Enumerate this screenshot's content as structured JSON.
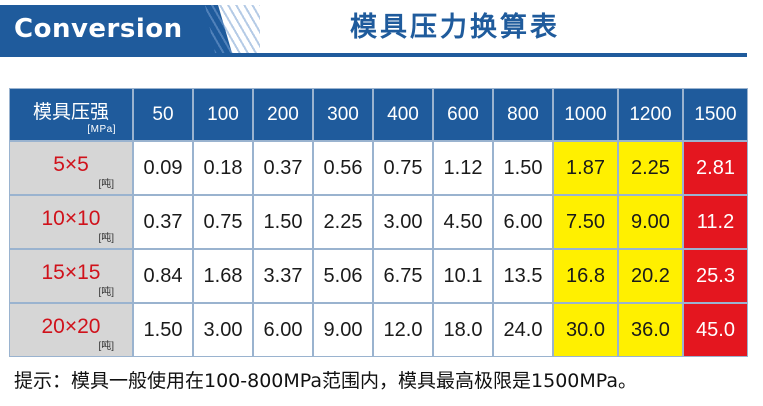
{
  "header": {
    "en_title": "Conversion",
    "cn_title": "模具压力换算表"
  },
  "table": {
    "corner_label": "模具压强",
    "corner_unit": "[MPa]",
    "row_unit": "[吨]",
    "columns": [
      "50",
      "100",
      "200",
      "300",
      "400",
      "600",
      "800",
      "1000",
      "1200",
      "1500"
    ],
    "rows": [
      {
        "size": "5×5",
        "values": [
          "0.09",
          "0.18",
          "0.37",
          "0.56",
          "0.75",
          "1.12",
          "1.50",
          "1.87",
          "2.25",
          "2.81"
        ]
      },
      {
        "size": "10×10",
        "values": [
          "0.37",
          "0.75",
          "1.50",
          "2.25",
          "3.00",
          "4.50",
          "6.00",
          "7.50",
          "9.00",
          "11.2"
        ]
      },
      {
        "size": "15×15",
        "values": [
          "0.84",
          "1.68",
          "3.37",
          "5.06",
          "6.75",
          "10.1",
          "13.5",
          "16.8",
          "20.2",
          "25.3"
        ]
      },
      {
        "size": "20×20",
        "values": [
          "1.50",
          "3.00",
          "6.00",
          "9.00",
          "12.0",
          "18.0",
          "24.0",
          "30.0",
          "36.0",
          "45.0"
        ]
      }
    ],
    "highlight_colors": {
      "yellow": "#fff000",
      "red": "#e4161f"
    },
    "accent_color": "#1f5b9c"
  },
  "note": "提示：模具一般使用在100-800MPa范围内，模具最高极限是1500MPa。"
}
